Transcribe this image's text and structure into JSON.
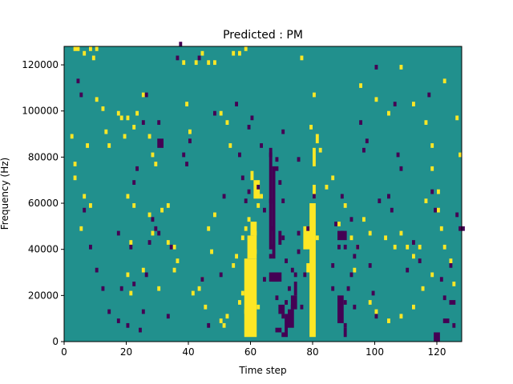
{
  "chart_data": {
    "type": "heatmap",
    "title": "Predicted : PM",
    "xlabel": "Time step",
    "ylabel": "Frequency (Hz)",
    "xlim": [
      0,
      128
    ],
    "ylim": [
      0,
      128000
    ],
    "x_ticks": [
      0,
      20,
      40,
      60,
      80,
      100,
      120
    ],
    "y_ticks": [
      0,
      20000,
      40000,
      60000,
      80000,
      100000,
      120000
    ],
    "grid": false,
    "legend": "none",
    "n_time_steps": 128,
    "n_freq_bins": 64,
    "cell_values": {
      "low": -1,
      "background": 0,
      "high": 1
    },
    "colors": {
      "low": "#440154",
      "background": "#21908d",
      "high": "#fde725"
    },
    "high_cells": [
      [
        3,
        126000
      ],
      [
        4,
        126000
      ],
      [
        6,
        124000
      ],
      [
        8,
        126000
      ],
      [
        10,
        126000
      ],
      [
        2,
        88000
      ],
      [
        3,
        76000
      ],
      [
        3,
        70000
      ],
      [
        5,
        48000
      ],
      [
        6,
        62000
      ],
      [
        7,
        84000
      ],
      [
        8,
        58000
      ],
      [
        9,
        122000
      ],
      [
        10,
        104000
      ],
      [
        12,
        100000
      ],
      [
        13,
        90000
      ],
      [
        14,
        84000
      ],
      [
        17,
        98000
      ],
      [
        18,
        96000
      ],
      [
        19,
        88000
      ],
      [
        20,
        96000
      ],
      [
        22,
        92000
      ],
      [
        23,
        98000
      ],
      [
        20,
        62000
      ],
      [
        21,
        42000
      ],
      [
        22,
        58000
      ],
      [
        25,
        106000
      ],
      [
        27,
        88000
      ],
      [
        28,
        80000
      ],
      [
        29,
        76000
      ],
      [
        31,
        56000
      ],
      [
        33,
        58000
      ],
      [
        35,
        40000
      ],
      [
        36,
        34000
      ],
      [
        38,
        120000
      ],
      [
        39,
        102000
      ],
      [
        40,
        90000
      ],
      [
        42,
        120000
      ],
      [
        44,
        124000
      ],
      [
        46,
        120000
      ],
      [
        48,
        120000
      ],
      [
        50,
        98000
      ],
      [
        52,
        94000
      ],
      [
        53,
        84000
      ],
      [
        54,
        124000
      ],
      [
        56,
        124000
      ],
      [
        58,
        126000
      ],
      [
        57,
        44000
      ],
      [
        58,
        48000
      ],
      [
        59,
        52000
      ],
      [
        61,
        38000
      ],
      [
        61,
        46000
      ],
      [
        62,
        58000
      ],
      [
        63,
        62000
      ],
      [
        20,
        28000
      ],
      [
        21,
        20000
      ],
      [
        25,
        30000
      ],
      [
        27,
        54000
      ],
      [
        28,
        46000
      ],
      [
        30,
        22000
      ],
      [
        33,
        42000
      ],
      [
        35,
        30000
      ],
      [
        41,
        20000
      ],
      [
        43,
        22000
      ],
      [
        44,
        26000
      ],
      [
        45,
        14000
      ],
      [
        46,
        48000
      ],
      [
        47,
        38000
      ],
      [
        48,
        54000
      ],
      [
        50,
        8000
      ],
      [
        51,
        6000
      ],
      [
        52,
        10000
      ],
      [
        54,
        32000
      ],
      [
        55,
        36000
      ],
      [
        56,
        16000
      ],
      [
        57,
        20000
      ],
      [
        58,
        12000
      ],
      [
        61,
        16000
      ],
      [
        62,
        14000
      ],
      [
        76,
        122000
      ],
      [
        79,
        92000
      ],
      [
        80,
        106000
      ],
      [
        82,
        82000
      ],
      [
        84,
        66000
      ],
      [
        86,
        70000
      ],
      [
        88,
        50000
      ],
      [
        90,
        58000
      ],
      [
        92,
        44000
      ],
      [
        93,
        30000
      ],
      [
        94,
        40000
      ],
      [
        96,
        52000
      ],
      [
        98,
        46000
      ],
      [
        103,
        44000
      ],
      [
        106,
        40000
      ],
      [
        108,
        46000
      ],
      [
        110,
        40000
      ],
      [
        112,
        36000
      ],
      [
        114,
        40000
      ],
      [
        116,
        60000
      ],
      [
        118,
        74000
      ],
      [
        120,
        56000
      ],
      [
        121,
        48000
      ],
      [
        122,
        40000
      ],
      [
        124,
        34000
      ],
      [
        125,
        24000
      ],
      [
        126,
        96000
      ],
      [
        127,
        80000
      ],
      [
        95,
        110000
      ],
      [
        100,
        104000
      ],
      [
        104,
        98000
      ],
      [
        108,
        118000
      ],
      [
        112,
        102000
      ],
      [
        116,
        94000
      ],
      [
        118,
        84000
      ],
      [
        120,
        64000
      ],
      [
        122,
        112000
      ],
      [
        98,
        16000
      ],
      [
        100,
        12000
      ],
      [
        104,
        8000
      ],
      [
        108,
        10000
      ],
      [
        112,
        14000
      ],
      [
        115,
        22000
      ],
      [
        118,
        28000
      ]
    ],
    "high_rects": [
      [
        58,
        62,
        2000,
        36000
      ],
      [
        59,
        62,
        36000,
        46000
      ],
      [
        60,
        62,
        46000,
        52000
      ],
      [
        61,
        63,
        62000,
        70000
      ],
      [
        60,
        61,
        70000,
        74000
      ],
      [
        78,
        80,
        30000,
        34000
      ],
      [
        79,
        81,
        2000,
        60000
      ],
      [
        77,
        80,
        40000,
        50000
      ],
      [
        81,
        82,
        44000,
        46000
      ],
      [
        80,
        81,
        62000,
        68000
      ],
      [
        80,
        81,
        76000,
        84000
      ],
      [
        81,
        82,
        86000,
        90000
      ]
    ],
    "low_cells": [
      [
        4,
        112000
      ],
      [
        5,
        106000
      ],
      [
        6,
        56000
      ],
      [
        8,
        40000
      ],
      [
        10,
        30000
      ],
      [
        12,
        22000
      ],
      [
        14,
        12000
      ],
      [
        17,
        8000
      ],
      [
        18,
        22000
      ],
      [
        20,
        6000
      ],
      [
        21,
        40000
      ],
      [
        22,
        68000
      ],
      [
        23,
        74000
      ],
      [
        24,
        4000
      ],
      [
        25,
        12000
      ],
      [
        26,
        28000
      ],
      [
        27,
        42000
      ],
      [
        28,
        52000
      ],
      [
        30,
        46000
      ],
      [
        17,
        46000
      ],
      [
        22,
        24000
      ],
      [
        25,
        94000
      ],
      [
        26,
        106000
      ],
      [
        29,
        48000
      ],
      [
        30,
        94000
      ],
      [
        33,
        10000
      ],
      [
        34,
        40000
      ],
      [
        36,
        122000
      ],
      [
        37,
        128000
      ],
      [
        38,
        80000
      ],
      [
        39,
        76000
      ],
      [
        40,
        86000
      ],
      [
        43,
        122000
      ],
      [
        44,
        26000
      ],
      [
        46,
        6000
      ],
      [
        48,
        98000
      ],
      [
        50,
        28000
      ],
      [
        51,
        62000
      ],
      [
        55,
        102000
      ],
      [
        56,
        80000
      ],
      [
        57,
        70000
      ],
      [
        59,
        92000
      ],
      [
        60,
        96000
      ],
      [
        63,
        84000
      ],
      [
        64,
        26000
      ],
      [
        64,
        56000
      ],
      [
        66,
        36000
      ],
      [
        66,
        60000
      ],
      [
        67,
        40000
      ],
      [
        67,
        48000
      ],
      [
        68,
        18000
      ],
      [
        68,
        78000
      ],
      [
        69,
        68000
      ],
      [
        70,
        10000
      ],
      [
        70,
        44000
      ],
      [
        70,
        60000
      ],
      [
        71,
        34000
      ],
      [
        72,
        22000
      ],
      [
        73,
        14000
      ],
      [
        74,
        28000
      ],
      [
        75,
        46000
      ],
      [
        75,
        78000
      ],
      [
        76,
        14000
      ],
      [
        77,
        28000
      ],
      [
        78,
        48000
      ],
      [
        80,
        62000
      ],
      [
        86,
        22000
      ],
      [
        86,
        32000
      ],
      [
        87,
        50000
      ],
      [
        88,
        40000
      ],
      [
        89,
        46000
      ],
      [
        89,
        62000
      ],
      [
        90,
        6000
      ],
      [
        90,
        16000
      ],
      [
        90,
        40000
      ],
      [
        91,
        22000
      ],
      [
        92,
        28000
      ],
      [
        92,
        52000
      ],
      [
        93,
        14000
      ],
      [
        93,
        36000
      ],
      [
        94,
        40000
      ],
      [
        95,
        94000
      ],
      [
        96,
        82000
      ],
      [
        97,
        86000
      ],
      [
        98,
        32000
      ],
      [
        99,
        20000
      ],
      [
        100,
        10000
      ],
      [
        100,
        118000
      ],
      [
        101,
        60000
      ],
      [
        104,
        62000
      ],
      [
        105,
        56000
      ],
      [
        106,
        102000
      ],
      [
        107,
        80000
      ],
      [
        108,
        74000
      ],
      [
        110,
        30000
      ],
      [
        112,
        42000
      ],
      [
        114,
        34000
      ],
      [
        117,
        106000
      ],
      [
        118,
        64000
      ],
      [
        119,
        56000
      ],
      [
        121,
        26000
      ],
      [
        122,
        18000
      ],
      [
        124,
        32000
      ],
      [
        125,
        6000
      ],
      [
        126,
        54000
      ],
      [
        127,
        48000
      ],
      [
        128,
        48000
      ],
      [
        58,
        60000
      ],
      [
        59,
        64000
      ],
      [
        62,
        66000
      ],
      [
        66,
        80000
      ],
      [
        68,
        74000
      ],
      [
        70,
        90000
      ],
      [
        73,
        30000
      ],
      [
        75,
        38000
      ]
    ],
    "low_rects": [
      [
        66,
        67,
        40000,
        84000
      ],
      [
        67,
        68,
        36000,
        76000
      ],
      [
        67,
        69,
        30000,
        26000
      ],
      [
        69,
        71,
        12000,
        16000
      ],
      [
        70,
        72,
        2000,
        4000
      ],
      [
        71,
        72,
        4000,
        12000
      ],
      [
        72,
        74,
        6000,
        14000
      ],
      [
        73,
        75,
        14000,
        20000
      ],
      [
        74,
        75,
        20000,
        26000
      ],
      [
        66,
        70,
        26000,
        30000
      ],
      [
        71,
        72,
        16000,
        18000
      ],
      [
        68,
        70,
        4000,
        6000
      ],
      [
        69,
        70,
        42000,
        48000
      ],
      [
        88,
        90,
        8000,
        20000
      ],
      [
        90,
        91,
        2000,
        6000
      ],
      [
        88,
        91,
        44000,
        48000
      ],
      [
        122,
        124,
        8000,
        10000
      ],
      [
        124,
        126,
        16000,
        18000
      ],
      [
        119,
        121,
        0,
        4000
      ],
      [
        30,
        32,
        84000,
        88000
      ]
    ]
  }
}
